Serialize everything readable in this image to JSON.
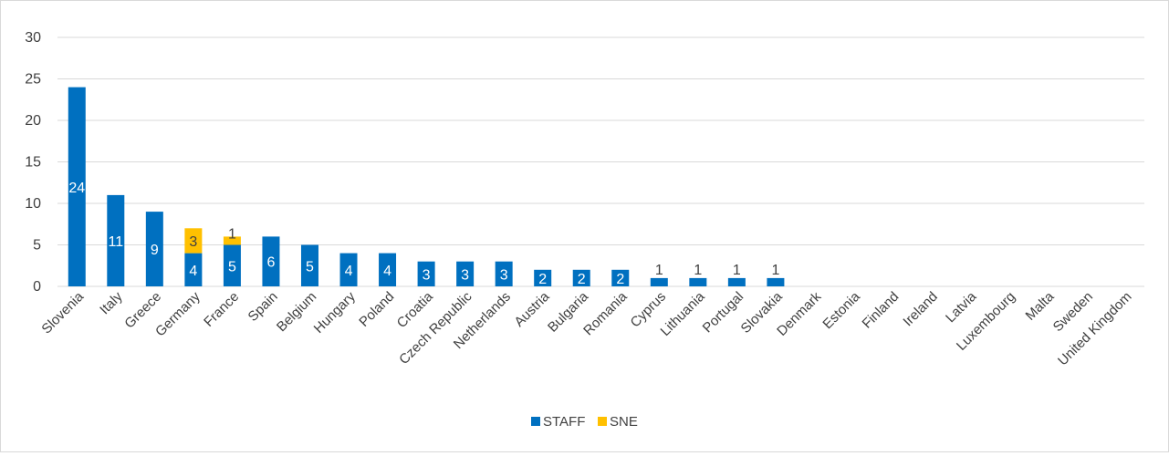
{
  "chart_data": {
    "type": "bar",
    "stacked": true,
    "categories": [
      "Slovenia",
      "Italy",
      "Greece",
      "Germany",
      "France",
      "Spain",
      "Belgium",
      "Hungary",
      "Poland",
      "Croatia",
      "Czech Republic",
      "Netherlands",
      "Austria",
      "Bulgaria",
      "Romania",
      "Cyprus",
      "Lithuania",
      "Portugal",
      "Slovakia",
      "Denmark",
      "Estonia",
      "Finland",
      "Ireland",
      "Latvia",
      "Luxembourg",
      "Malta",
      "Sweden",
      "United Kingdom"
    ],
    "series": [
      {
        "name": "STAFF",
        "color": "#0070c0",
        "values": [
          24,
          11,
          9,
          4,
          5,
          6,
          5,
          4,
          4,
          3,
          3,
          3,
          2,
          2,
          2,
          1,
          1,
          1,
          1,
          0,
          0,
          0,
          0,
          0,
          0,
          0,
          0,
          0
        ]
      },
      {
        "name": "SNE",
        "color": "#ffc000",
        "values": [
          0,
          0,
          0,
          3,
          1,
          0,
          0,
          0,
          0,
          0,
          0,
          0,
          0,
          0,
          0,
          0,
          0,
          0,
          0,
          0,
          0,
          0,
          0,
          0,
          0,
          0,
          0,
          0
        ]
      }
    ],
    "title": "",
    "xlabel": "",
    "ylabel": "",
    "ylim": [
      0,
      30
    ],
    "yticks": [
      "0",
      "5",
      "10",
      "15",
      "20",
      "25",
      "30"
    ],
    "grid": true,
    "legend": "bottom"
  }
}
